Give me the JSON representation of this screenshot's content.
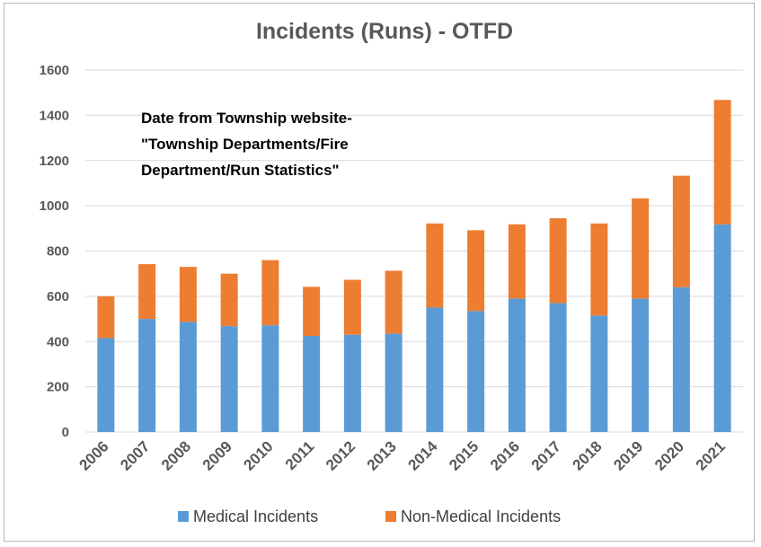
{
  "chart_data": {
    "type": "bar",
    "stacked": true,
    "title": "Incidents (Runs)  - OTFD",
    "annotation": [
      "Date from Township website-",
      "\"Township Departments/Fire",
      "Department/Run Statistics\""
    ],
    "categories": [
      "2006",
      "2007",
      "2008",
      "2009",
      "2010",
      "2011",
      "2012",
      "2013",
      "2014",
      "2015",
      "2016",
      "2017",
      "2018",
      "2019",
      "2020",
      "2021"
    ],
    "series": [
      {
        "name": "Medical Incidents",
        "color": "#5b9bd5",
        "values": [
          415,
          500,
          487,
          468,
          472,
          425,
          430,
          435,
          550,
          535,
          590,
          570,
          515,
          590,
          640,
          918
        ]
      },
      {
        "name": "Non-Medical Incidents",
        "color": "#ed7d31",
        "values": [
          185,
          242,
          243,
          232,
          288,
          217,
          243,
          278,
          372,
          357,
          328,
          375,
          407,
          443,
          493,
          550
        ]
      }
    ],
    "ylim": [
      0,
      1600
    ],
    "yticks": [
      0,
      200,
      400,
      600,
      800,
      1000,
      1200,
      1400,
      1600
    ],
    "xlabel": "",
    "ylabel": "",
    "grid": true,
    "legend_position": "bottom"
  }
}
